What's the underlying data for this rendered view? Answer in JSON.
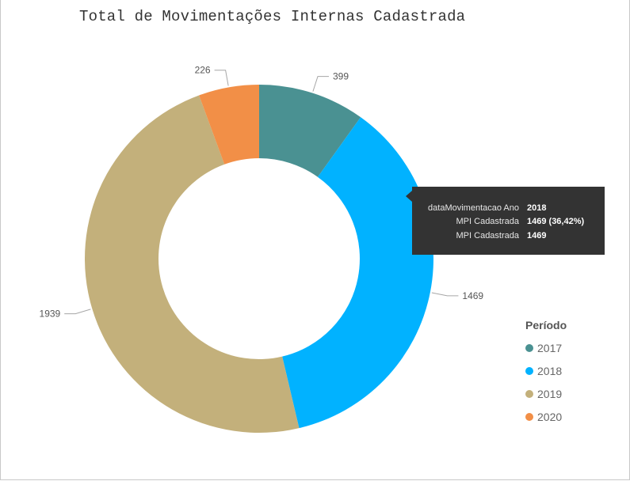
{
  "chart_data": {
    "type": "pie",
    "title": "Total de Movimentações Internas Cadastrada",
    "categories": [
      "2017",
      "2018",
      "2019",
      "2020"
    ],
    "values": [
      399,
      1469,
      1939,
      226
    ],
    "data_labels": [
      "399",
      "1469",
      "1939",
      "226"
    ],
    "colors": [
      "#4a9192",
      "#01b2ff",
      "#c3b07b",
      "#f28f47"
    ],
    "legend": {
      "title": "Período",
      "placement": "right",
      "entries": [
        "2017",
        "2018",
        "2019",
        "2020"
      ]
    },
    "tooltip": {
      "rows": [
        {
          "label": "dataMovimentacao Ano",
          "value": "2018"
        },
        {
          "label": "MPI Cadastrada",
          "value": "1469 (36,42%)"
        },
        {
          "label": "MPI Cadastrada",
          "value": "1469"
        }
      ]
    }
  }
}
